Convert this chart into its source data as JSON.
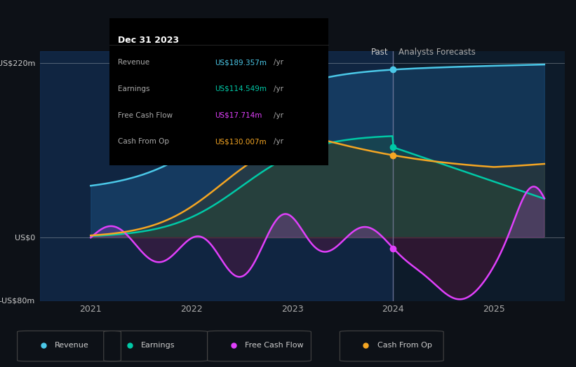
{
  "bg_color": "#0d1117",
  "plot_bg_color": "#0d1b2a",
  "title_box_bg": "#000000",
  "title_box_text": "Dec 31 2023",
  "tooltip_rows": [
    {
      "label": "Revenue",
      "value": "US$189.357m /yr",
      "color": "#4bc8e8"
    },
    {
      "label": "Earnings",
      "value": "US$114.549m /yr",
      "color": "#00c9a7"
    },
    {
      "label": "Free Cash Flow",
      "value": "US$17.714m /yr",
      "color": "#e040fb"
    },
    {
      "label": "Cash From Op",
      "value": "US$130.007m /yr",
      "color": "#f5a623"
    }
  ],
  "ylabel_top": "US$220m",
  "ylabel_zero": "US$0",
  "ylabel_bottom": "-US$80m",
  "xlabels": [
    "2021",
    "2022",
    "2023",
    "2024",
    "2025"
  ],
  "past_label": "Past",
  "forecast_label": "Analysts Forecasts",
  "divider_x": 2024.0,
  "legend_items": [
    {
      "label": "Revenue",
      "color": "#4bc8e8"
    },
    {
      "label": "Earnings",
      "color": "#00c9a7"
    },
    {
      "label": "Free Cash Flow",
      "color": "#e040fb"
    },
    {
      "label": "Cash From Op",
      "color": "#f5a623"
    }
  ],
  "revenue_color": "#4bc8e8",
  "earnings_color": "#00c9a7",
  "fcf_color": "#e040fb",
  "cashop_color": "#f5a623",
  "x_min": 2020.5,
  "x_max": 2025.7,
  "y_min": -80,
  "y_max": 235
}
